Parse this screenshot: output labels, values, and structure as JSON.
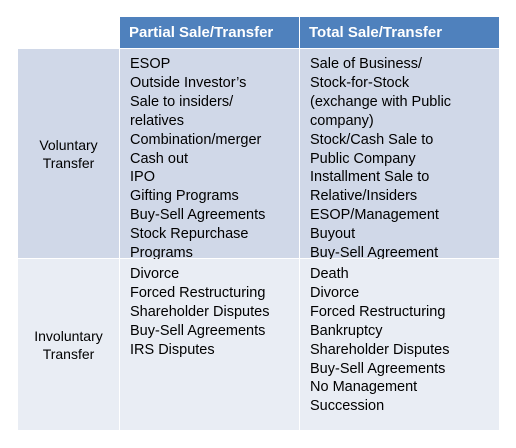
{
  "table": {
    "headers": [
      "",
      "Partial Sale/Transfer",
      "Total Sale/Transfer"
    ],
    "rows": [
      {
        "label": "Voluntary\nTransfer",
        "partial": [
          "ESOP",
          "Outside Investor’s",
          "Sale to insiders/",
          "relatives",
          "Combination/merger",
          "Cash out",
          "IPO",
          "Gifting Programs",
          "Buy-Sell Agreements",
          "Stock Repurchase",
          "Programs"
        ],
        "total": [
          "Sale of Business/",
          "Stock-for-Stock",
          "(exchange with Public",
          "company)",
          "Stock/Cash Sale to",
          "Public Company",
          "Installment Sale to",
          "Relative/Insiders",
          "ESOP/Management",
          "Buyout",
          "Buy-Sell Agreement"
        ]
      },
      {
        "label": "Involuntary\nTransfer",
        "partial": [
          "Divorce",
          "Forced Restructuring",
          "Shareholder Disputes",
          "Buy-Sell Agreements",
          "IRS Disputes"
        ],
        "total": [
          "Death",
          "Divorce",
          "Forced Restructuring",
          "Bankruptcy",
          "Shareholder Disputes",
          "Buy-Sell Agreements",
          "No Management",
          "Succession"
        ]
      }
    ]
  },
  "colors": {
    "header_bg": "#4f81bd",
    "row1_bg": "#d0d8e8",
    "row2_bg": "#e9edf4"
  }
}
